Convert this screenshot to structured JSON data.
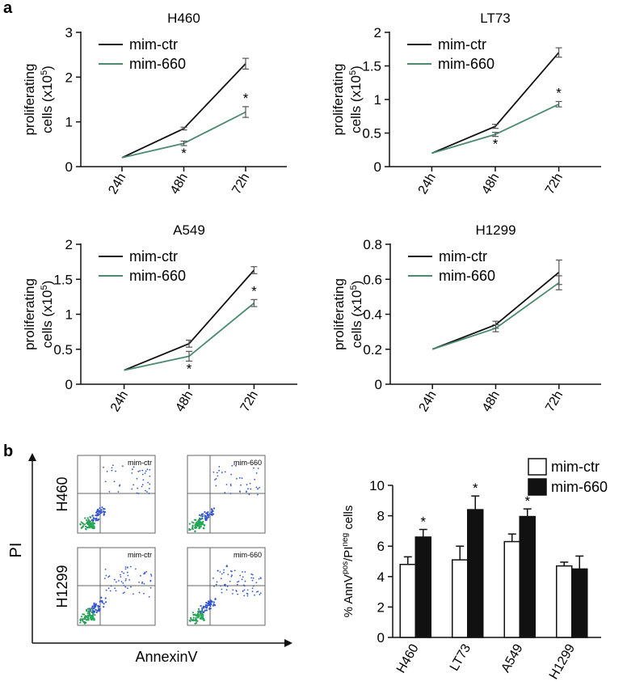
{
  "panel_labels": {
    "a": "a",
    "b": "b"
  },
  "colors": {
    "ctr": "#111111",
    "k660": "#4a8a6e",
    "bar_ctr": "#ffffff",
    "bar_660": "#111111",
    "dot": "#3355cc",
    "axis": "#111111"
  },
  "flow": {
    "ylabel": "PI",
    "xlabel": "AnnexinV",
    "rows": [
      "H460",
      "H1299"
    ],
    "plots": [
      {
        "row": 0,
        "col": 0,
        "tag": "mim-ctr"
      },
      {
        "row": 0,
        "col": 1,
        "tag": "mim-660"
      },
      {
        "row": 1,
        "col": 0,
        "tag": "mim-ctr"
      },
      {
        "row": 1,
        "col": 1,
        "tag": "mim-660"
      }
    ]
  },
  "chart_data": [
    {
      "type": "line",
      "title": "H460",
      "ylabel": "proliferating cells (x10^5)",
      "ylabel_main": "proliferating",
      "ylabel_sub": "cells (x10",
      "ylabel_sup": "5",
      "ylabel_end": ")",
      "categories": [
        "24h",
        "48h",
        "72h"
      ],
      "yticks": [
        "0",
        "1",
        "2",
        "3"
      ],
      "ylim": [
        0,
        3
      ],
      "series": [
        {
          "name": "mim-ctr",
          "values": [
            0.2,
            0.85,
            2.3
          ],
          "errors": [
            0,
            0.03,
            0.12
          ]
        },
        {
          "name": "mim-660",
          "values": [
            0.2,
            0.52,
            1.22
          ],
          "errors": [
            0,
            0.05,
            0.12
          ]
        }
      ],
      "annotations": [
        {
          "index": 1,
          "text": "*"
        },
        {
          "index": 2,
          "text": "*"
        }
      ]
    },
    {
      "type": "line",
      "title": "LT73",
      "ylabel": "proliferating cells (x10^5)",
      "ylabel_main": "proliferating",
      "ylabel_sub": "cells (x10",
      "ylabel_sup": "5",
      "ylabel_end": ")",
      "categories": [
        "24h",
        "48h",
        "72h"
      ],
      "yticks": [
        "0",
        "0.5",
        "1",
        "1.5",
        "2"
      ],
      "ylim": [
        0,
        2
      ],
      "series": [
        {
          "name": "mim-ctr",
          "values": [
            0.2,
            0.6,
            1.7
          ],
          "errors": [
            0,
            0.03,
            0.07
          ]
        },
        {
          "name": "mim-660",
          "values": [
            0.2,
            0.48,
            0.93
          ],
          "errors": [
            0,
            0.03,
            0.04
          ]
        }
      ],
      "annotations": [
        {
          "index": 1,
          "text": "*"
        },
        {
          "index": 2,
          "text": "*"
        }
      ]
    },
    {
      "type": "line",
      "title": "A549",
      "ylabel": "proliferating cells (x10^5)",
      "ylabel_main": "proliferating",
      "ylabel_sub": "cells (x10",
      "ylabel_sup": "5",
      "ylabel_end": ")",
      "categories": [
        "24h",
        "48h",
        "72h"
      ],
      "yticks": [
        "0",
        "0.5",
        "1",
        "1.5",
        "2"
      ],
      "ylim": [
        0,
        2
      ],
      "series": [
        {
          "name": "mim-ctr",
          "values": [
            0.2,
            0.58,
            1.63
          ],
          "errors": [
            0,
            0.05,
            0.05
          ]
        },
        {
          "name": "mim-660",
          "values": [
            0.2,
            0.4,
            1.16
          ],
          "errors": [
            0,
            0.07,
            0.05
          ]
        }
      ],
      "annotations": [
        {
          "index": 1,
          "text": "*"
        },
        {
          "index": 2,
          "text": "*"
        }
      ]
    },
    {
      "type": "line",
      "title": "H1299",
      "ylabel": "proliferating cells (x10^5)",
      "ylabel_main": "proliferating",
      "ylabel_sub": "cells (x10",
      "ylabel_sup": "5",
      "ylabel_end": ")",
      "categories": [
        "24h",
        "48h",
        "72h"
      ],
      "yticks": [
        "0",
        "0.2",
        "0.4",
        "0.6",
        "0.8"
      ],
      "ylim": [
        0,
        0.8
      ],
      "series": [
        {
          "name": "mim-ctr",
          "values": [
            0.2,
            0.34,
            0.64
          ],
          "errors": [
            0,
            0.02,
            0.07
          ]
        },
        {
          "name": "mim-660",
          "values": [
            0.2,
            0.32,
            0.58
          ],
          "errors": [
            0,
            0.02,
            0.04
          ]
        }
      ],
      "annotations": []
    },
    {
      "type": "bar",
      "ylabel": "% AnnV(pos)/PI(neg) cells",
      "ylabel_p1": "% AnnV",
      "ylabel_s1": "pos",
      "ylabel_p2": "/PI",
      "ylabel_s2": "neg",
      "ylabel_p3": " cells",
      "categories": [
        "H460",
        "LT73",
        "A549",
        "H1299"
      ],
      "yticks": [
        "0",
        "2",
        "4",
        "6",
        "8",
        "10"
      ],
      "ylim": [
        0,
        10
      ],
      "legend": "top",
      "series": [
        {
          "name": "mim-ctr",
          "values": [
            4.8,
            5.1,
            6.3,
            4.7
          ],
          "errors": [
            0.5,
            0.9,
            0.5,
            0.25
          ]
        },
        {
          "name": "mim-660",
          "values": [
            6.6,
            8.4,
            7.95,
            4.5
          ],
          "errors": [
            0.5,
            0.9,
            0.5,
            0.85
          ]
        }
      ],
      "annotations": [
        {
          "index": 0,
          "text": "*"
        },
        {
          "index": 1,
          "text": "*"
        },
        {
          "index": 2,
          "text": "*"
        }
      ]
    }
  ]
}
